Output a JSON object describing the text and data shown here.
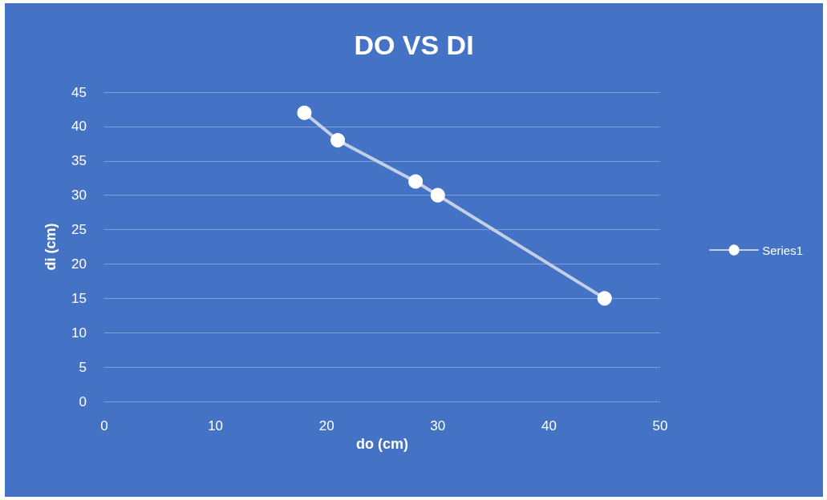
{
  "chart_data": {
    "type": "line",
    "title": "DO VS DI",
    "xlabel": "do (cm)",
    "ylabel": "di (cm)",
    "x": [
      18,
      21,
      28,
      30,
      45
    ],
    "series": [
      {
        "name": "Series1",
        "color": "#c5d0e6",
        "values": [
          42,
          38,
          32,
          30,
          15
        ]
      }
    ],
    "xlim": [
      0,
      50
    ],
    "xticks": [
      0,
      10,
      20,
      30,
      40,
      50
    ],
    "ylim": [
      0,
      45
    ],
    "yticks": [
      0,
      5,
      10,
      15,
      20,
      25,
      30,
      35,
      40,
      45
    ],
    "grid": "y",
    "legend": "right",
    "marker": "circle",
    "line_style": "solid"
  }
}
